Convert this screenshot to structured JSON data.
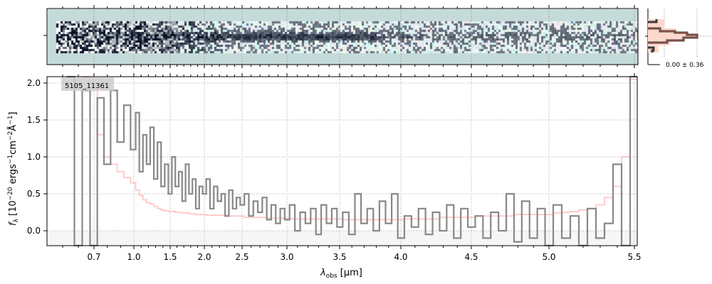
{
  "chart_data": {
    "type": "line",
    "object_id": "5105_11361",
    "xlabel_main": "λ",
    "xlabel_sub": "obs",
    "xlabel_unit": " [μm]",
    "ylabel": "f_λ [10^-20 ergs^-1 cm^-2 Å^-1]",
    "ylabel_parts": {
      "f": "f",
      "lam": "λ",
      "a": " [10",
      "e1": "−20",
      "b": " ergs",
      "e2": "−1",
      "c": "cm",
      "e3": "−2",
      "d": "Å",
      "e4": "−1",
      "e": "]"
    },
    "x_ticks": [
      "0.7",
      "1.0",
      "1.5",
      "2.0",
      "2.5",
      "3.0",
      "3.5",
      "4.0",
      "4.5",
      "5.0",
      "5.5"
    ],
    "y_ticks": [
      "0.0",
      "0.5",
      "1.0",
      "1.5",
      "2.0"
    ],
    "ylim": [
      -0.2,
      2.09
    ],
    "xlim": [
      0.4,
      5.52
    ],
    "grid": true,
    "wave_start": 0.55,
    "wave_step": 0.05,
    "series": [
      {
        "name": "flux",
        "color": "#888888",
        "values": [
          2.1,
          -0.2,
          1.9,
          -0.2,
          1.8,
          0.9,
          1.9,
          1.2,
          1.7,
          1.1,
          1.6,
          0.8,
          1.3,
          0.9,
          1.4,
          0.7,
          1.2,
          0.6,
          0.9,
          0.5,
          1.0,
          0.6,
          0.8,
          0.4,
          0.9,
          0.5,
          0.7,
          0.3,
          0.6,
          0.5,
          0.7,
          0.3,
          0.6,
          0.4,
          0.5,
          0.2,
          0.55,
          0.3,
          0.45,
          0.35,
          0.5,
          0.2,
          0.4,
          0.25,
          0.45,
          0.15,
          0.35,
          0.1,
          0.3,
          0.15,
          0.35,
          0.0,
          0.25,
          0.1,
          0.3,
          -0.05,
          0.35,
          0.1,
          0.3,
          0.05,
          0.25,
          -0.05,
          0.5,
          0.1,
          0.3,
          0.0,
          0.4,
          0.1,
          0.5,
          -0.1,
          0.2,
          0.05,
          0.3,
          -0.05,
          0.25,
          0.0,
          0.35,
          -0.1,
          0.3,
          0.05,
          0.2,
          -0.1,
          0.25,
          0.0,
          0.5,
          -0.15,
          0.4,
          -0.1,
          0.3,
          -0.2,
          0.35,
          -0.1,
          0.2,
          -0.2,
          0.3,
          -0.1,
          0.1,
          0.9,
          -0.2,
          2.1
        ]
      },
      {
        "name": "model",
        "color": "#ffaaaa",
        "values": [
          null,
          null,
          2.1,
          1.9,
          1.3,
          1.0,
          0.9,
          0.8,
          0.72,
          0.65,
          0.55,
          0.48,
          0.42,
          0.38,
          0.36,
          0.33,
          0.3,
          0.28,
          0.27,
          0.26,
          0.26,
          0.25,
          0.25,
          0.24,
          0.24,
          0.23,
          0.23,
          0.22,
          0.22,
          0.22,
          0.21,
          0.21,
          0.21,
          0.21,
          0.21,
          0.2,
          0.2,
          0.2,
          0.2,
          0.2,
          0.18,
          0.18,
          0.18,
          0.18,
          0.18,
          0.17,
          0.17,
          0.17,
          0.17,
          0.17,
          0.16,
          0.16,
          0.16,
          0.16,
          0.16,
          0.16,
          0.16,
          0.16,
          0.16,
          0.16,
          0.15,
          0.15,
          0.15,
          0.15,
          0.15,
          0.15,
          0.15,
          0.15,
          0.15,
          0.15,
          0.16,
          0.16,
          0.16,
          0.16,
          0.16,
          0.18,
          0.18,
          0.18,
          0.18,
          0.18,
          0.2,
          0.2,
          0.2,
          0.2,
          0.2,
          0.22,
          0.22,
          0.22,
          0.22,
          0.22,
          0.24,
          0.25,
          0.26,
          0.28,
          0.3,
          0.35,
          0.45,
          0.6,
          1.0,
          2.05
        ]
      }
    ],
    "residual_histogram": {
      "label": "0.00 ± 0.36",
      "mean": 0.0,
      "std": 0.36
    },
    "spectrum_2d_colors": {
      "background": "#c5dbda",
      "dark": "#0a0f24"
    }
  }
}
